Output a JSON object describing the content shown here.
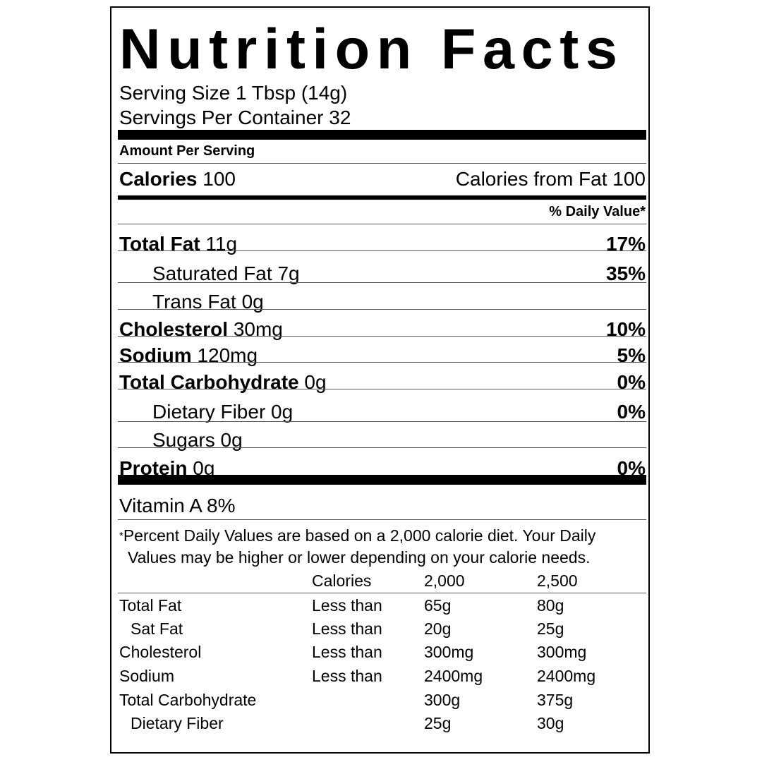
{
  "title": "Nutrition Facts",
  "serving_size": "Serving Size 1 Tbsp (14g)",
  "servings_per_container": "Servings Per Container 32",
  "amount_per_serving": "Amount Per Serving",
  "calories": {
    "label": "Calories",
    "value": "100",
    "from_fat": "Calories from Fat 100"
  },
  "daily_value_header": "% Daily Value*",
  "nutrients": [
    {
      "name": "Total Fat",
      "amount": "11g",
      "dv": "17%",
      "bold": true,
      "indent": false
    },
    {
      "name": "Saturated Fat",
      "amount": "7g",
      "dv": "35%",
      "bold": false,
      "indent": true
    },
    {
      "name": "Trans Fat",
      "amount": "0g",
      "dv": "",
      "bold": false,
      "indent": true
    },
    {
      "name": "Cholesterol",
      "amount": "30mg",
      "dv": "10%",
      "bold": true,
      "indent": false
    },
    {
      "name": "Sodium",
      "amount": "120mg",
      "dv": "5%",
      "bold": true,
      "indent": false
    },
    {
      "name": "Total Carbohydrate",
      "amount": "0g",
      "dv": "0%",
      "bold": true,
      "indent": false
    },
    {
      "name": "Dietary Fiber",
      "amount": "0g",
      "dv": "0%",
      "bold": false,
      "indent": true
    },
    {
      "name": "Sugars",
      "amount": "0g",
      "dv": "",
      "bold": false,
      "indent": true
    },
    {
      "name": "Protein",
      "amount": "0g",
      "dv": "0%",
      "bold": true,
      "indent": false
    }
  ],
  "vitamins": [
    "Vitamin A 8%"
  ],
  "footnote": {
    "asterisk": "*",
    "line1": "Percent Daily Values are based on a 2,000 calorie diet. Your Daily",
    "line2": "Values may be higher or lower depending on your calorie needs."
  },
  "reference_table": {
    "header": [
      "",
      "Calories",
      "2,000",
      "2,500"
    ],
    "rows": [
      [
        "Total Fat",
        "Less than",
        "65g",
        "80g"
      ],
      [
        "Sat Fat",
        "Less than",
        "20g",
        "25g"
      ],
      [
        "Cholesterol",
        "Less than",
        "300mg",
        "300mg"
      ],
      [
        "Sodium",
        "Less than",
        "2400mg",
        "2400mg"
      ],
      [
        "Total Carbohydrate",
        "",
        "300g",
        "375g"
      ],
      [
        "Dietary Fiber",
        "",
        "25g",
        "30g"
      ]
    ],
    "indented_rows": [
      1,
      5
    ]
  }
}
